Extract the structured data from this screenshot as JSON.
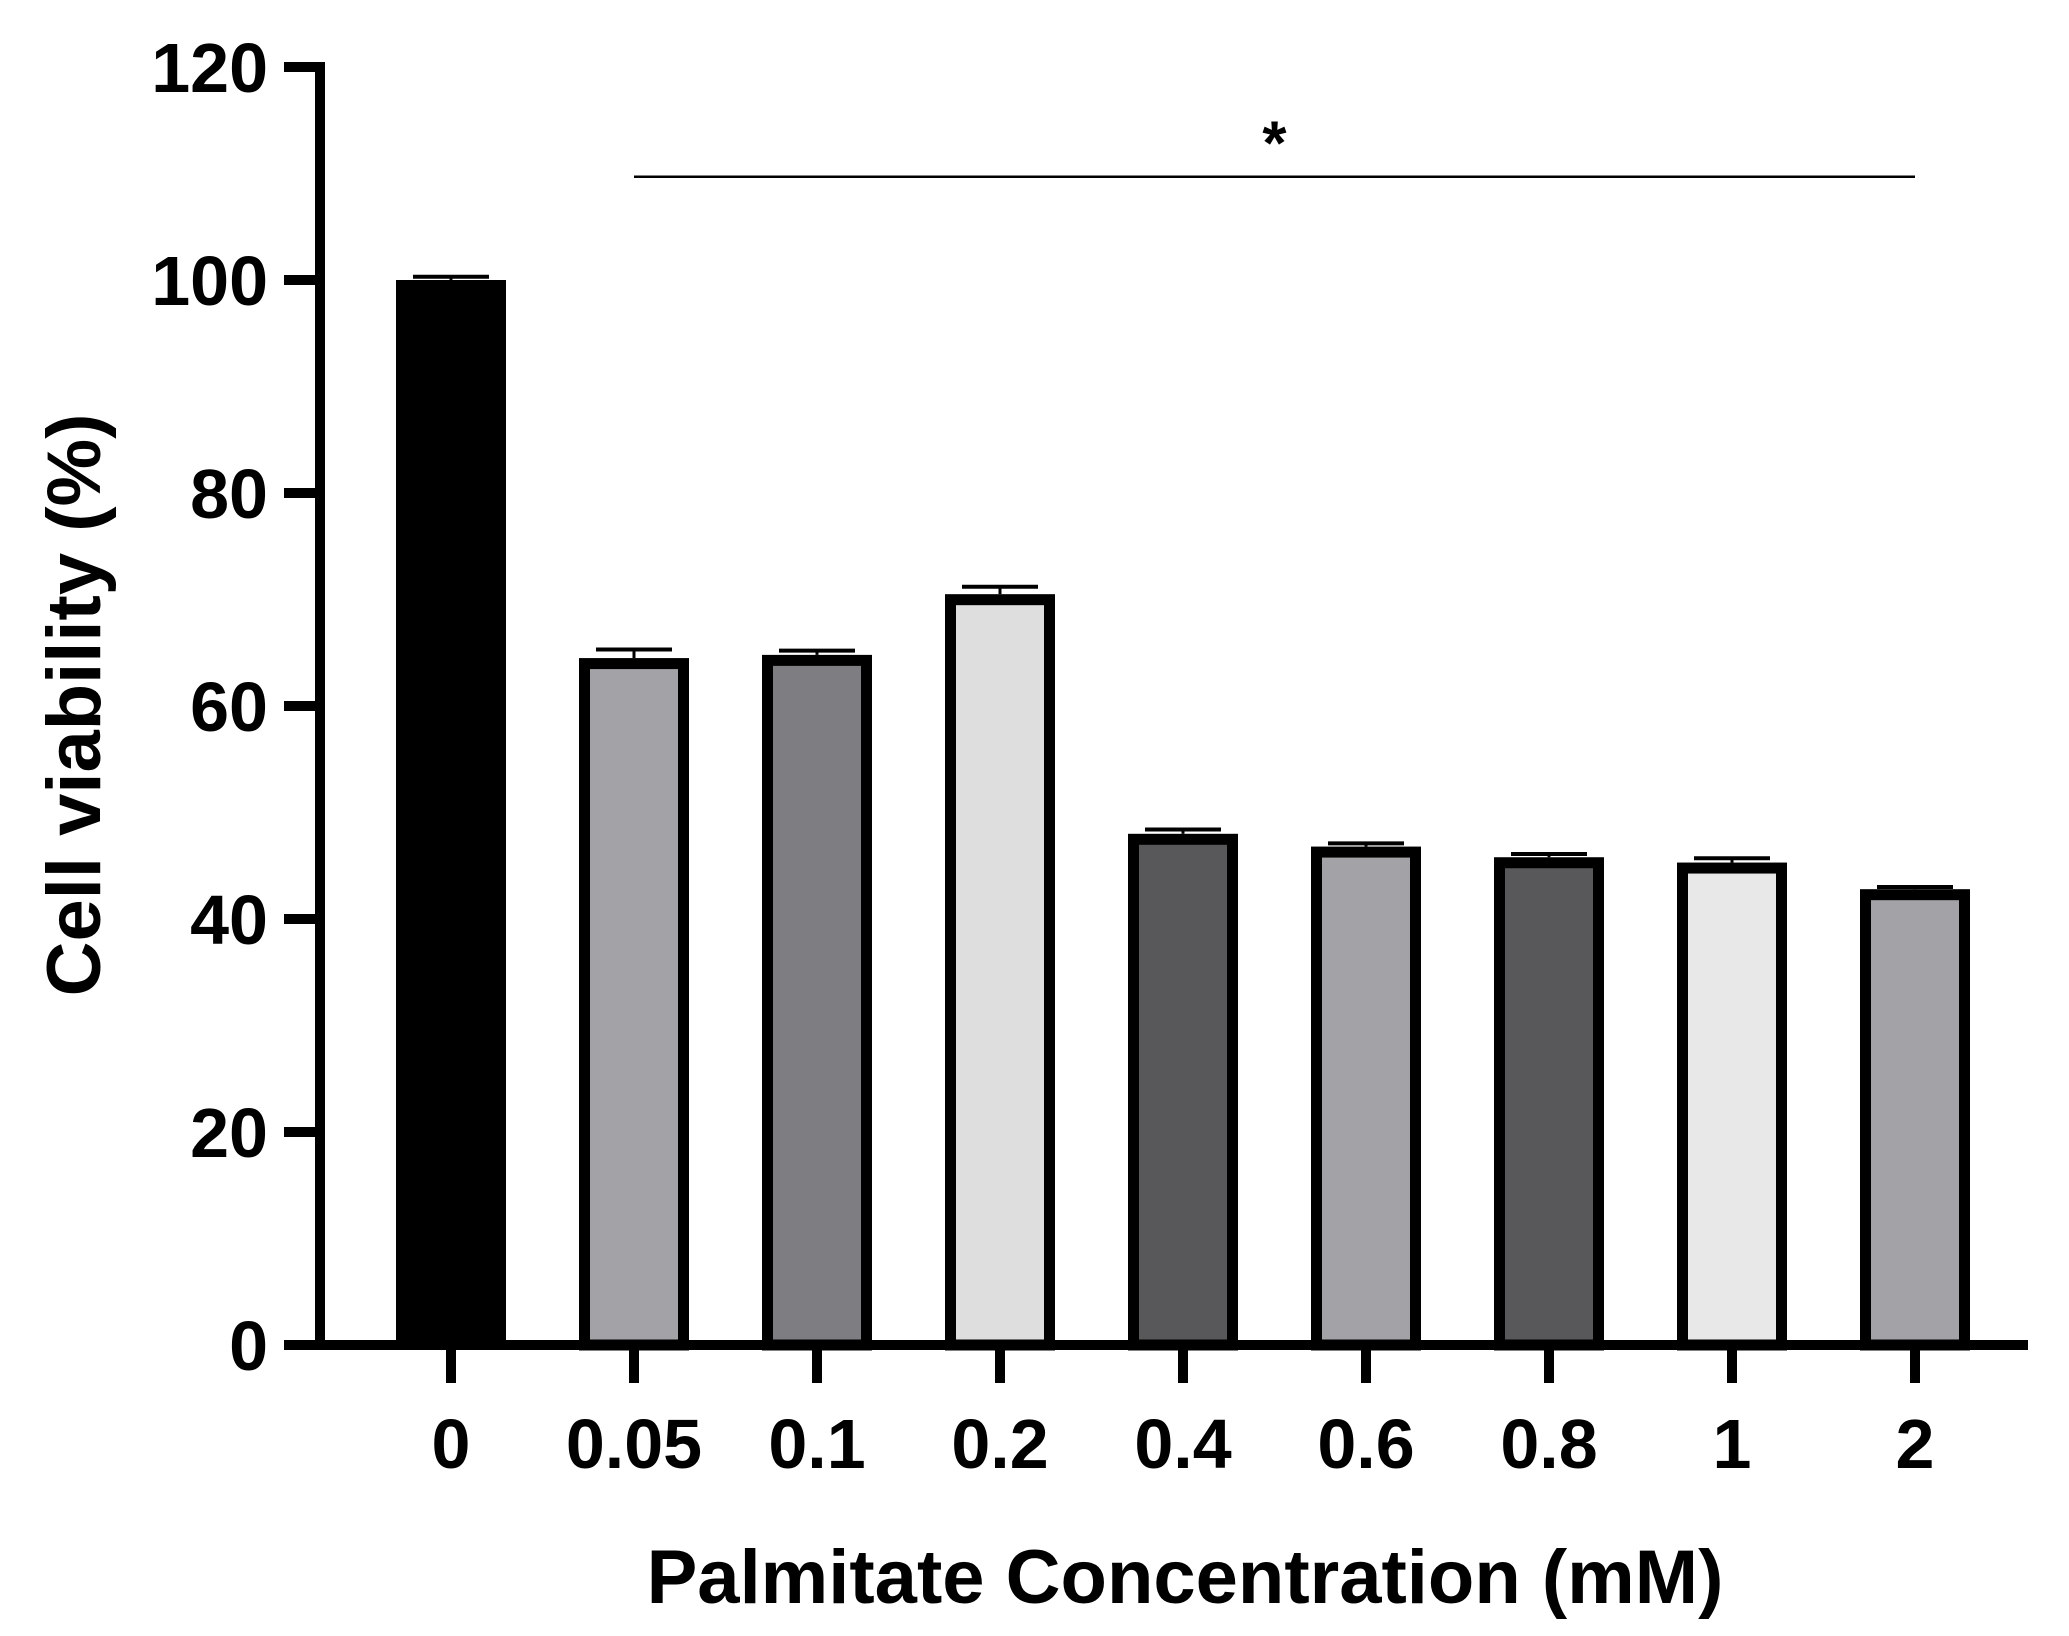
{
  "chart_data": {
    "type": "bar",
    "title": "",
    "xlabel": "Palmitate Concentration (mM)",
    "ylabel": "Cell viability (%)",
    "categories": [
      "0",
      "0.05",
      "0.1",
      "0.2",
      "0.4",
      "0.6",
      "0.8",
      "1",
      "2"
    ],
    "values": [
      100,
      64.5,
      64.8,
      70.5,
      48,
      46.8,
      45.8,
      45.3,
      42.8
    ],
    "errors": [
      0.3,
      0.8,
      0.4,
      0.7,
      0.4,
      0.3,
      0.3,
      0.4,
      0.2
    ],
    "bar_colors": [
      "#000000",
      "#a3a3a7",
      "#7e7e82",
      "#dededf",
      "#58585a",
      "#a3a3a7",
      "#58585a",
      "#e8e8e9",
      "#a3a3a7"
    ],
    "ylim": [
      0,
      120
    ],
    "yticks": [
      "0",
      "20",
      "40",
      "60",
      "80",
      "100",
      "120"
    ],
    "grid": false,
    "significance": {
      "label": "*",
      "from_category": "0.05",
      "to_category": "2",
      "level": 109.7
    }
  }
}
